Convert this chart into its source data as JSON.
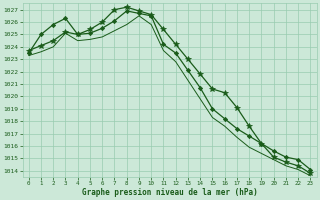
{
  "line1_x": [
    0,
    1,
    2,
    3,
    4,
    5,
    6,
    7,
    8,
    9,
    10,
    11,
    12,
    13,
    14,
    15,
    16,
    17,
    18,
    19,
    20,
    21,
    22,
    23
  ],
  "line1_y": [
    1023.7,
    1024.1,
    1024.5,
    1025.2,
    1025.0,
    1025.4,
    1026.0,
    1027.0,
    1027.2,
    1026.9,
    1026.6,
    1025.4,
    1024.2,
    1023.0,
    1021.8,
    1020.6,
    1020.3,
    1019.1,
    1017.6,
    1016.2,
    1015.1,
    1014.7,
    1014.4,
    1013.8
  ],
  "line2_x": [
    0,
    1,
    2,
    3,
    4,
    5,
    6,
    7,
    8,
    9,
    10,
    11,
    12,
    13,
    14,
    15,
    16,
    17,
    18,
    19,
    20,
    21,
    22,
    23
  ],
  "line2_y": [
    1023.5,
    1025.0,
    1025.8,
    1026.3,
    1025.0,
    1025.1,
    1025.5,
    1026.1,
    1026.9,
    1026.7,
    1026.5,
    1024.2,
    1023.5,
    1022.1,
    1020.7,
    1019.0,
    1018.2,
    1017.4,
    1016.8,
    1016.2,
    1015.6,
    1015.1,
    1014.9,
    1014.1
  ],
  "line3_x": [
    0,
    1,
    2,
    3,
    4,
    5,
    6,
    7,
    8,
    9,
    10,
    11,
    12,
    13,
    14,
    15,
    16,
    17,
    18,
    19,
    20,
    21,
    22,
    23
  ],
  "line3_y": [
    1023.3,
    1023.6,
    1024.0,
    1025.1,
    1024.5,
    1024.6,
    1024.8,
    1025.3,
    1025.8,
    1026.5,
    1025.8,
    1023.7,
    1022.8,
    1021.3,
    1019.8,
    1018.3,
    1017.6,
    1016.7,
    1015.9,
    1015.4,
    1014.9,
    1014.4,
    1014.1,
    1013.6
  ],
  "xlabel": "Graphe pression niveau de la mer (hPa)",
  "ylim_min": 1013.5,
  "ylim_max": 1027.5,
  "xlim_min": -0.5,
  "xlim_max": 23.5,
  "yticks": [
    1014,
    1015,
    1016,
    1017,
    1018,
    1019,
    1020,
    1021,
    1022,
    1023,
    1024,
    1025,
    1026,
    1027
  ],
  "xticks": [
    0,
    1,
    2,
    3,
    4,
    5,
    6,
    7,
    8,
    9,
    10,
    11,
    12,
    13,
    14,
    15,
    16,
    17,
    18,
    19,
    20,
    21,
    22,
    23
  ],
  "bg_color": "#cce8d8",
  "grid_color": "#99ccb0",
  "line_color": "#1a5c1a",
  "text_color": "#1a5c1a",
  "marker_color": "#1a5c1a"
}
